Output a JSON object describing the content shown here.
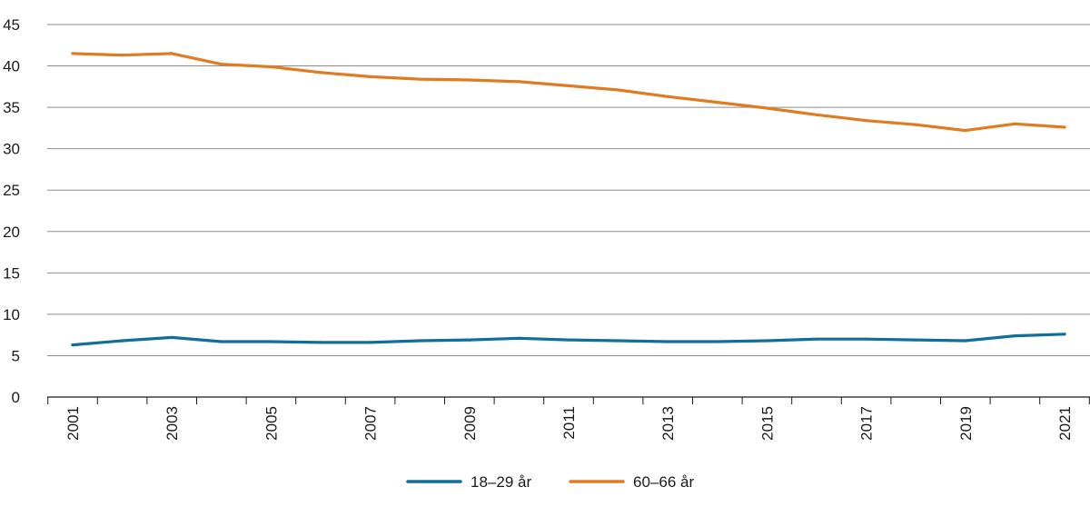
{
  "chart_data": {
    "type": "line",
    "x": [
      "2001",
      "2002",
      "2003",
      "2004",
      "2005",
      "2006",
      "2007",
      "2008",
      "2009",
      "2010",
      "2011",
      "2012",
      "2013",
      "2014",
      "2015",
      "2016",
      "2017",
      "2018",
      "2019",
      "2020",
      "2021"
    ],
    "x_tick_labels": [
      "2001",
      "2003",
      "2005",
      "2007",
      "2009",
      "2011",
      "2013",
      "2015",
      "2017",
      "2019",
      "2021"
    ],
    "y_tick_labels": [
      "0",
      "5",
      "10",
      "15",
      "20",
      "25",
      "30",
      "35",
      "40",
      "45"
    ],
    "ylim": [
      0,
      45
    ],
    "grid": "horizontal",
    "legend_position": "bottom-center",
    "title": "",
    "xlabel": "",
    "ylabel": "",
    "series": [
      {
        "name": "18–29 år",
        "color": "#0f6f9a",
        "values": [
          6.3,
          6.8,
          7.2,
          6.7,
          6.7,
          6.6,
          6.6,
          6.8,
          6.9,
          7.1,
          6.9,
          6.8,
          6.7,
          6.7,
          6.8,
          7.0,
          7.0,
          6.9,
          6.8,
          7.4,
          7.6
        ]
      },
      {
        "name": "60–66 år",
        "color": "#e07b22",
        "values": [
          41.5,
          41.3,
          41.5,
          40.2,
          39.9,
          39.2,
          38.7,
          38.4,
          38.3,
          38.1,
          37.6,
          37.1,
          36.3,
          35.6,
          34.9,
          34.1,
          33.4,
          32.9,
          32.2,
          33.0,
          32.6
        ]
      }
    ]
  }
}
